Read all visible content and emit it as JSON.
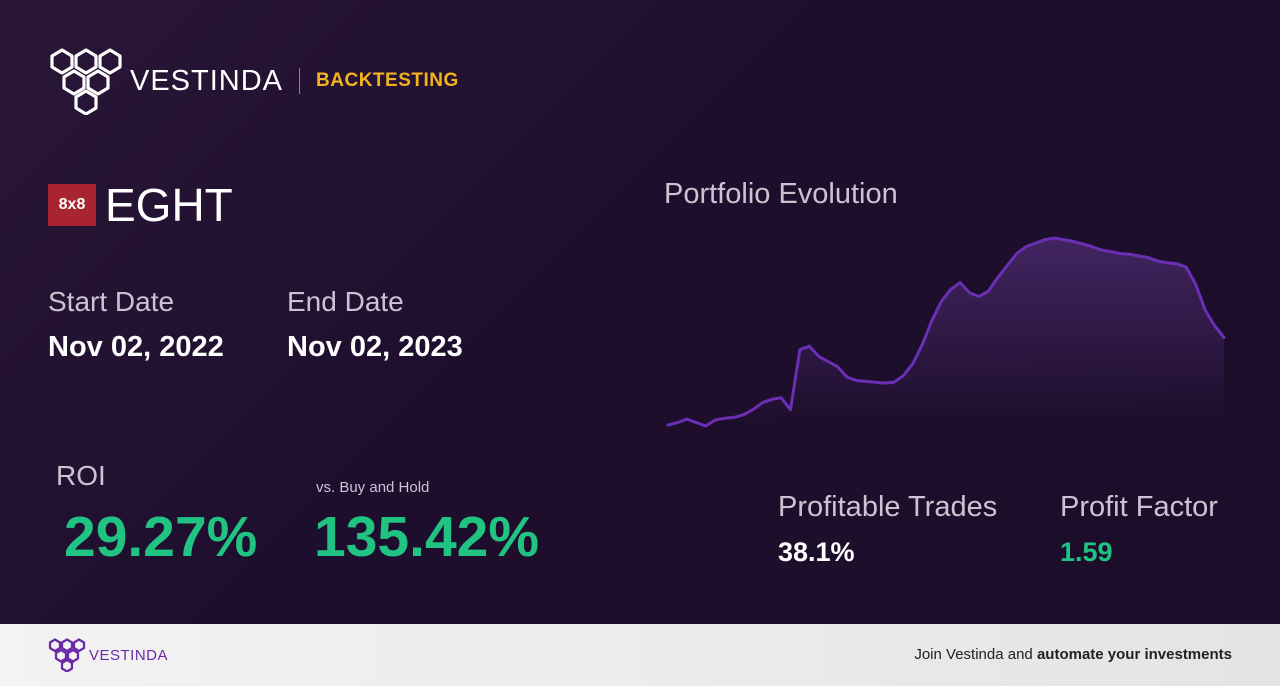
{
  "header": {
    "brand_name": "VESTINDA",
    "section": "BACKTESTING"
  },
  "ticker": {
    "badge": "8x8",
    "symbol": "EGHT"
  },
  "dates": {
    "start_label": "Start Date",
    "start_value": "Nov 02, 2022",
    "end_label": "End Date",
    "end_value": "Nov 02, 2023"
  },
  "metrics": {
    "roi_label": "ROI",
    "roi_value": "29.27%",
    "bh_label": "vs. Buy and Hold",
    "bh_value": "135.42%",
    "profitable_label": "Profitable Trades",
    "profitable_value": "38.1%",
    "pf_label": "Profit Factor",
    "pf_value": "1.59"
  },
  "chart_title": "Portfolio Evolution",
  "chart_data": {
    "type": "area",
    "title": "Portfolio Evolution",
    "xlabel": "",
    "ylabel": "",
    "x": [
      0,
      1,
      2,
      3,
      4,
      5,
      6,
      7,
      8,
      9,
      10,
      11,
      12,
      13,
      14,
      15,
      16,
      17,
      18,
      19,
      20,
      21,
      22,
      23,
      24,
      25,
      26,
      27,
      28,
      29,
      30,
      31,
      32,
      33,
      34,
      35,
      36,
      37,
      38,
      39,
      40,
      41,
      42,
      43,
      44,
      45,
      46,
      47,
      48,
      49,
      50,
      51,
      52,
      53,
      54,
      55,
      56,
      57,
      58,
      59
    ],
    "values": [
      0.0,
      1.5,
      3.5,
      1.5,
      -0.5,
      3.0,
      4.0,
      4.5,
      6.0,
      9.0,
      13.0,
      15.0,
      16.0,
      9.0,
      44.0,
      46.0,
      40.0,
      37.0,
      34.0,
      28.0,
      26.0,
      25.5,
      25.0,
      24.5,
      25.0,
      29.0,
      36.0,
      47.0,
      61.0,
      72.0,
      79.0,
      83.0,
      77.0,
      75.0,
      78.0,
      86.0,
      93.0,
      100.0,
      104.0,
      106.0,
      108.0,
      109.0,
      108.0,
      107.0,
      105.5,
      104.0,
      102.0,
      101.0,
      100.0,
      99.5,
      98.5,
      97.5,
      95.5,
      94.5,
      94.0,
      92.0,
      82.0,
      67.0,
      58.0,
      51.0
    ],
    "grid": false,
    "legend": "none",
    "colors": {
      "line": "#6a2fb4",
      "fill": "#7f4ab8"
    }
  },
  "footer": {
    "brand_name": "VESTINDA",
    "cta_prefix": "Join Vestinda and ",
    "cta_bold": "automate your investments"
  }
}
